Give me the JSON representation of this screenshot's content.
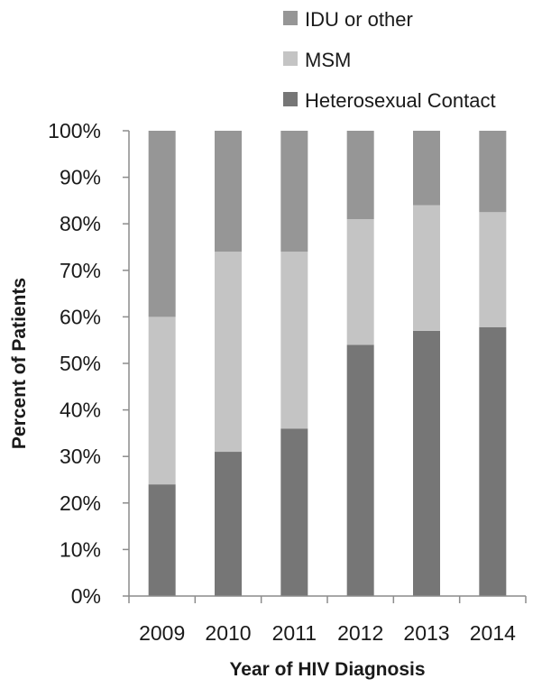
{
  "chart_data": {
    "type": "bar",
    "stacked": true,
    "xlabel": "Year of HIV Diagnosis",
    "ylabel": "Percent of Patients",
    "ylim": [
      0,
      100
    ],
    "y_ticks": [
      "0%",
      "10%",
      "20%",
      "30%",
      "40%",
      "50%",
      "60%",
      "70%",
      "80%",
      "90%",
      "100%"
    ],
    "categories": [
      "2009",
      "2010",
      "2011",
      "2012",
      "2013",
      "2014"
    ],
    "series": [
      {
        "name": "Heterosexual Contact",
        "color": "#767676",
        "values": [
          24,
          31,
          36,
          54,
          57,
          57.8
        ]
      },
      {
        "name": "MSM",
        "color": "#c4c4c4",
        "values": [
          36,
          43,
          38,
          27,
          27,
          24.7
        ]
      },
      {
        "name": "IDU or other",
        "color": "#969696",
        "values": [
          40,
          26,
          26,
          19,
          16,
          17.5
        ]
      }
    ],
    "legend": {
      "placement": "top-right",
      "order": [
        "IDU or other",
        "MSM",
        "Heterosexual Contact"
      ]
    },
    "grid": false
  }
}
